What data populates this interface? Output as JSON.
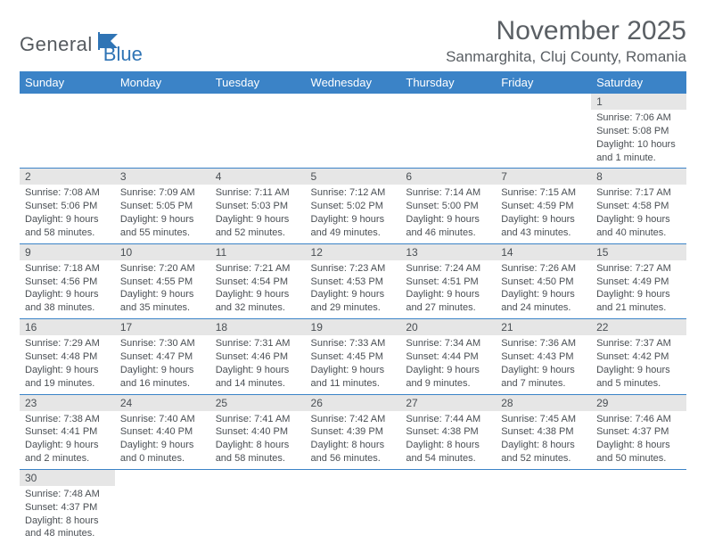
{
  "logo": {
    "text1": "General",
    "text2": "Blue"
  },
  "title": "November 2025",
  "location": "Sanmarghita, Cluj County, Romania",
  "colors": {
    "header_bg": "#3b83c7",
    "header_text": "#ffffff",
    "daynum_bg": "#e6e6e6",
    "rule": "#3b83c7",
    "text": "#4a4f54",
    "logo_gray": "#555a5f",
    "logo_blue": "#2f74b5"
  },
  "weekdays": [
    "Sunday",
    "Monday",
    "Tuesday",
    "Wednesday",
    "Thursday",
    "Friday",
    "Saturday"
  ],
  "weeks": [
    [
      null,
      null,
      null,
      null,
      null,
      null,
      {
        "n": "1",
        "sr": "7:06 AM",
        "ss": "5:08 PM",
        "dl": "10 hours and 1 minute."
      }
    ],
    [
      {
        "n": "2",
        "sr": "7:08 AM",
        "ss": "5:06 PM",
        "dl": "9 hours and 58 minutes."
      },
      {
        "n": "3",
        "sr": "7:09 AM",
        "ss": "5:05 PM",
        "dl": "9 hours and 55 minutes."
      },
      {
        "n": "4",
        "sr": "7:11 AM",
        "ss": "5:03 PM",
        "dl": "9 hours and 52 minutes."
      },
      {
        "n": "5",
        "sr": "7:12 AM",
        "ss": "5:02 PM",
        "dl": "9 hours and 49 minutes."
      },
      {
        "n": "6",
        "sr": "7:14 AM",
        "ss": "5:00 PM",
        "dl": "9 hours and 46 minutes."
      },
      {
        "n": "7",
        "sr": "7:15 AM",
        "ss": "4:59 PM",
        "dl": "9 hours and 43 minutes."
      },
      {
        "n": "8",
        "sr": "7:17 AM",
        "ss": "4:58 PM",
        "dl": "9 hours and 40 minutes."
      }
    ],
    [
      {
        "n": "9",
        "sr": "7:18 AM",
        "ss": "4:56 PM",
        "dl": "9 hours and 38 minutes."
      },
      {
        "n": "10",
        "sr": "7:20 AM",
        "ss": "4:55 PM",
        "dl": "9 hours and 35 minutes."
      },
      {
        "n": "11",
        "sr": "7:21 AM",
        "ss": "4:54 PM",
        "dl": "9 hours and 32 minutes."
      },
      {
        "n": "12",
        "sr": "7:23 AM",
        "ss": "4:53 PM",
        "dl": "9 hours and 29 minutes."
      },
      {
        "n": "13",
        "sr": "7:24 AM",
        "ss": "4:51 PM",
        "dl": "9 hours and 27 minutes."
      },
      {
        "n": "14",
        "sr": "7:26 AM",
        "ss": "4:50 PM",
        "dl": "9 hours and 24 minutes."
      },
      {
        "n": "15",
        "sr": "7:27 AM",
        "ss": "4:49 PM",
        "dl": "9 hours and 21 minutes."
      }
    ],
    [
      {
        "n": "16",
        "sr": "7:29 AM",
        "ss": "4:48 PM",
        "dl": "9 hours and 19 minutes."
      },
      {
        "n": "17",
        "sr": "7:30 AM",
        "ss": "4:47 PM",
        "dl": "9 hours and 16 minutes."
      },
      {
        "n": "18",
        "sr": "7:31 AM",
        "ss": "4:46 PM",
        "dl": "9 hours and 14 minutes."
      },
      {
        "n": "19",
        "sr": "7:33 AM",
        "ss": "4:45 PM",
        "dl": "9 hours and 11 minutes."
      },
      {
        "n": "20",
        "sr": "7:34 AM",
        "ss": "4:44 PM",
        "dl": "9 hours and 9 minutes."
      },
      {
        "n": "21",
        "sr": "7:36 AM",
        "ss": "4:43 PM",
        "dl": "9 hours and 7 minutes."
      },
      {
        "n": "22",
        "sr": "7:37 AM",
        "ss": "4:42 PM",
        "dl": "9 hours and 5 minutes."
      }
    ],
    [
      {
        "n": "23",
        "sr": "7:38 AM",
        "ss": "4:41 PM",
        "dl": "9 hours and 2 minutes."
      },
      {
        "n": "24",
        "sr": "7:40 AM",
        "ss": "4:40 PM",
        "dl": "9 hours and 0 minutes."
      },
      {
        "n": "25",
        "sr": "7:41 AM",
        "ss": "4:40 PM",
        "dl": "8 hours and 58 minutes."
      },
      {
        "n": "26",
        "sr": "7:42 AM",
        "ss": "4:39 PM",
        "dl": "8 hours and 56 minutes."
      },
      {
        "n": "27",
        "sr": "7:44 AM",
        "ss": "4:38 PM",
        "dl": "8 hours and 54 minutes."
      },
      {
        "n": "28",
        "sr": "7:45 AM",
        "ss": "4:38 PM",
        "dl": "8 hours and 52 minutes."
      },
      {
        "n": "29",
        "sr": "7:46 AM",
        "ss": "4:37 PM",
        "dl": "8 hours and 50 minutes."
      }
    ],
    [
      {
        "n": "30",
        "sr": "7:48 AM",
        "ss": "4:37 PM",
        "dl": "8 hours and 48 minutes."
      },
      null,
      null,
      null,
      null,
      null,
      null
    ]
  ],
  "labels": {
    "sunrise": "Sunrise: ",
    "sunset": "Sunset: ",
    "daylight": "Daylight: "
  }
}
